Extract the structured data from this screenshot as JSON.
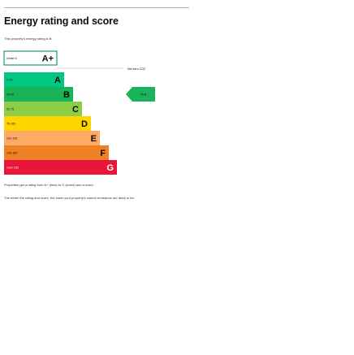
{
  "heading": "Energy rating and score",
  "intro": "This property's energy rating is B.",
  "net_zero_label": "Net zero CO2",
  "bands": [
    {
      "letter": "A+",
      "range": "Under 0",
      "color": "#ffffff",
      "border": "#008054"
    },
    {
      "letter": "A",
      "range": "0-25",
      "color": "#00c781"
    },
    {
      "letter": "B",
      "range": "26-50",
      "color": "#19b459"
    },
    {
      "letter": "C",
      "range": "51-75",
      "color": "#8dce46"
    },
    {
      "letter": "D",
      "range": "76-100",
      "color": "#ffd500"
    },
    {
      "letter": "E",
      "range": "101-125",
      "color": "#fcaa65"
    },
    {
      "letter": "F",
      "range": "126-150",
      "color": "#ef8023"
    },
    {
      "letter": "G",
      "range": "Over 150",
      "color": "#e9153b"
    }
  ],
  "current": {
    "score": "29",
    "letter": "B",
    "color": "#19b459"
  },
  "notes": {
    "line1": "Properties get a rating from A+ (best) to G (worst) and a score.",
    "line2": "The better the rating and score, the lower your property's carbon emissions are likely to be."
  }
}
